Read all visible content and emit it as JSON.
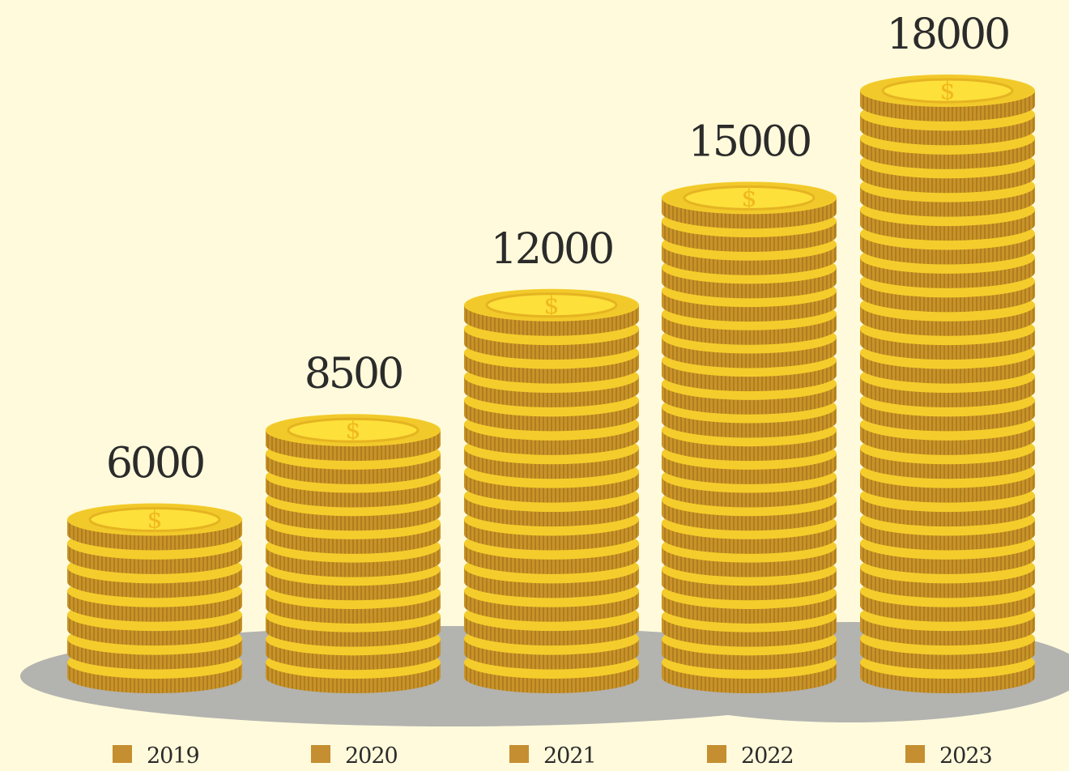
{
  "chart_data": {
    "type": "bar",
    "title": "",
    "xlabel": "",
    "ylabel": "",
    "categories": [
      "2019",
      "2020",
      "2021",
      "2022",
      "2023"
    ],
    "values": [
      6000,
      8500,
      12000,
      15000,
      18000
    ],
    "value_labels": [
      "6000",
      "8500",
      "12000",
      "15000",
      "18000"
    ],
    "ylim": [
      0,
      18000
    ],
    "grid": false,
    "legend_position": "bottom",
    "style": "stacked coins"
  },
  "colors": {
    "background": "#fffadb",
    "shadow": "#b3b3b0",
    "coin_edge": "#c9952a",
    "coin_rim": "#f4cd2c",
    "coin_face": "#f2c92a",
    "coin_inner": "#fde03a",
    "dollar": "#f0b81d",
    "legend_marker": "#c58e30",
    "text": "#2b2b2b"
  },
  "icons": {
    "coin": "dollar-coin-icon",
    "dollar_glyph": "$"
  }
}
